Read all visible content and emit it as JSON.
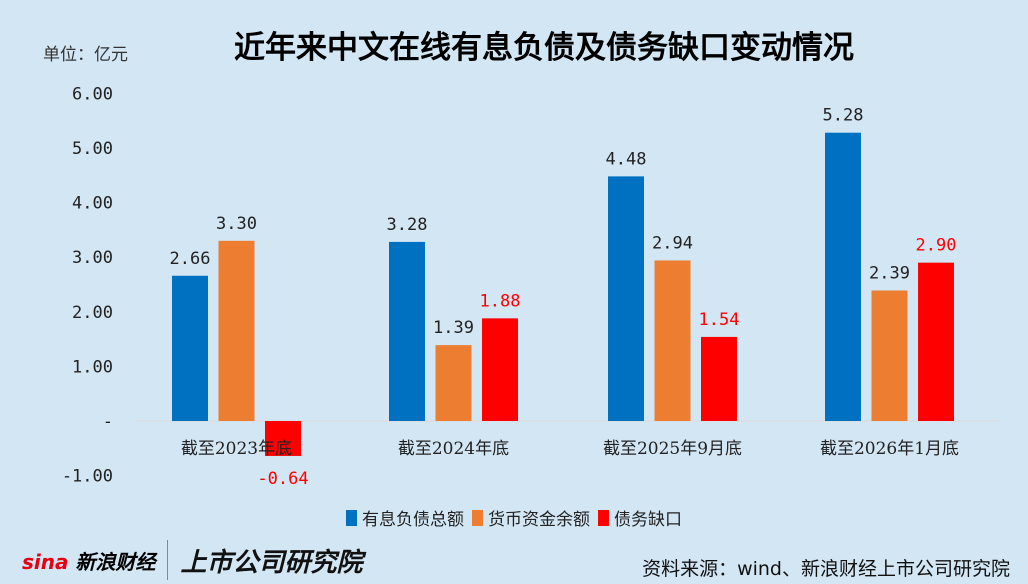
{
  "chart_data": {
    "type": "bar",
    "title": "近年来中文在线有息负债及债务缺口变动情况",
    "unit_label": "单位：亿元",
    "categories": [
      "截至2023年底",
      "截至2024年底",
      "截至2025年9月底",
      "截至2026年1月底"
    ],
    "series": [
      {
        "name": "有息负债总额",
        "color": "#0070c0",
        "values": [
          2.66,
          3.28,
          4.48,
          5.28
        ],
        "labels": [
          "2.66",
          "3.28",
          "4.48",
          "5.28"
        ],
        "label_color": "#222222"
      },
      {
        "name": "货币资金余额",
        "color": "#ed7d31",
        "values": [
          3.3,
          1.39,
          2.94,
          2.39
        ],
        "labels": [
          "3.30",
          "1.39",
          "2.94",
          "2.39"
        ],
        "label_color": "#222222"
      },
      {
        "name": "债务缺口",
        "color": "#ff0000",
        "values": [
          -0.64,
          1.88,
          1.54,
          2.9
        ],
        "labels": [
          "-0.64",
          "1.88",
          "1.54",
          "2.90"
        ],
        "label_color": "#ff0000"
      }
    ],
    "ylim": [
      -1,
      6
    ],
    "yticks": [
      6,
      5,
      4,
      3,
      2,
      1,
      0,
      -1
    ],
    "ytick_labels": [
      "6.00",
      "5.00",
      "4.00",
      "3.00",
      "2.00",
      "1.00",
      "-",
      "-1.00"
    ],
    "grid": false,
    "legend": "bottom"
  },
  "footer": {
    "logo_sina": "sina",
    "logo_sina_text": "新浪财经",
    "logo_institute": "上市公司研究院",
    "source": "资料来源：wind、新浪财经上市公司研究院"
  }
}
